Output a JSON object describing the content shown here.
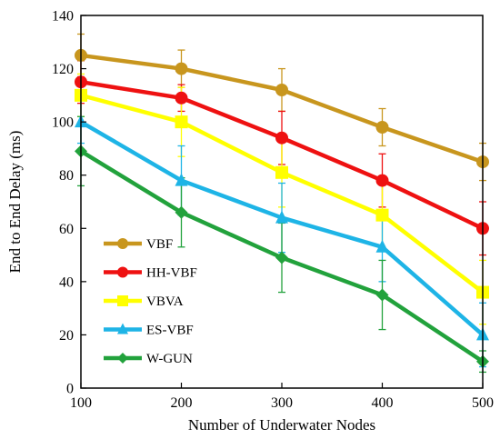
{
  "chart_data": {
    "type": "line",
    "xlabel": "Number of Underwater Nodes",
    "ylabel": "End to End Delay (ms)",
    "x": [
      100,
      200,
      300,
      400,
      500
    ],
    "xlim": [
      100,
      500
    ],
    "ylim": [
      0,
      140
    ],
    "xticks": [
      "100",
      "200",
      "300",
      "400",
      "500"
    ],
    "yticks": [
      "0",
      "20",
      "40",
      "60",
      "80",
      "100",
      "120",
      "140"
    ],
    "grid": false,
    "legend_position": "bottom-left",
    "series": [
      {
        "name": "VBF",
        "color": "#C8961E",
        "marker": "circle",
        "values": [
          125,
          120,
          112,
          98,
          85
        ],
        "errors": [
          8,
          7,
          8,
          7,
          7
        ]
      },
      {
        "name": "HH-VBF",
        "color": "#EE1111",
        "marker": "circle",
        "values": [
          115,
          109,
          94,
          78,
          60
        ],
        "errors": [
          8,
          5,
          10,
          10,
          10
        ]
      },
      {
        "name": "VBVA",
        "color": "#FFFF00",
        "marker": "square",
        "values": [
          110,
          100,
          81,
          65,
          36
        ],
        "errors": [
          8,
          13,
          13,
          13,
          12
        ]
      },
      {
        "name": "ES-VBF",
        "color": "#1EB4E6",
        "marker": "triangle",
        "values": [
          100,
          78,
          64,
          53,
          20
        ],
        "errors": [
          8,
          13,
          13,
          13,
          12
        ]
      },
      {
        "name": "W-GUN",
        "color": "#22A23C",
        "marker": "diamond",
        "values": [
          89,
          66,
          49,
          35,
          10
        ],
        "errors": [
          13,
          13,
          13,
          13,
          4
        ]
      }
    ]
  }
}
